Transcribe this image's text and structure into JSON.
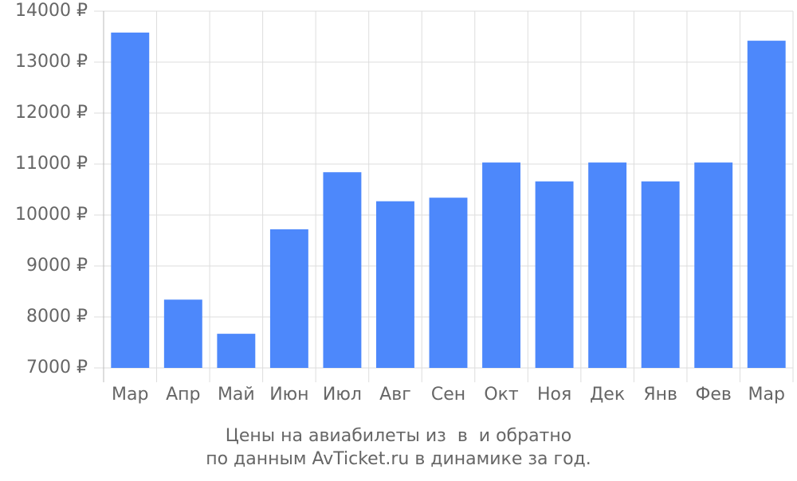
{
  "chart_data": {
    "type": "bar",
    "title": "Цены на авиабилеты из  в  и обратно",
    "subtitle": "по данным AvTicket.ru в динамике за год.",
    "categories": [
      "Мар",
      "Апр",
      "Май",
      "Июн",
      "Июл",
      "Авг",
      "Сен",
      "Окт",
      "Ноя",
      "Дек",
      "Янв",
      "Фев",
      "Мар"
    ],
    "values": [
      13580,
      8340,
      7670,
      9720,
      10840,
      10270,
      10340,
      11030,
      10660,
      11030,
      10660,
      11030,
      13420
    ],
    "color": "#4d88fb",
    "ylim": [
      7000,
      14000
    ],
    "yticks": [
      {
        "value": 7000,
        "label": "7000 ₽"
      },
      {
        "value": 8000,
        "label": "8000 ₽"
      },
      {
        "value": 9000,
        "label": "9000 ₽"
      },
      {
        "value": 10000,
        "label": "10000 ₽"
      },
      {
        "value": 11000,
        "label": "11000 ₽"
      },
      {
        "value": 12000,
        "label": "12000 ₽"
      },
      {
        "value": 13000,
        "label": "13000 ₽"
      },
      {
        "value": 14000,
        "label": "14000 ₽"
      }
    ],
    "grid": true
  }
}
